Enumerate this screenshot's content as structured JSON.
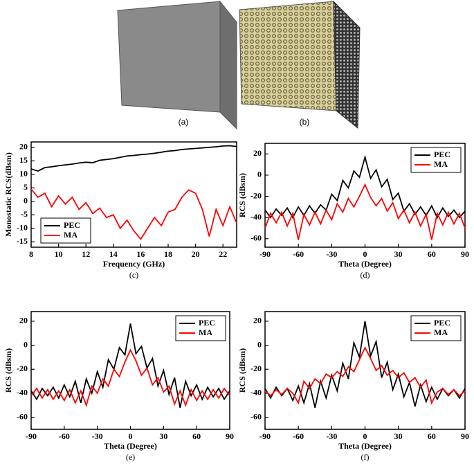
{
  "panels": {
    "a": "(a)",
    "b": "(b)"
  },
  "chart_data": [
    {
      "type": "line",
      "caption": "(c)",
      "xlabel": "Frequency (GHz)",
      "ylabel": "Monostatic RCS(dBsm)",
      "x": [
        8,
        8.5,
        9,
        9.5,
        10,
        10.5,
        11,
        11.5,
        12,
        12.5,
        13,
        13.5,
        14,
        14.5,
        15,
        15.5,
        16,
        16.5,
        17,
        17.5,
        18,
        18.5,
        19,
        19.5,
        20,
        20.5,
        21,
        21.5,
        22,
        22.5,
        23
      ],
      "series": [
        {
          "name": "PEC",
          "color": "#000000",
          "values": [
            12,
            11.2,
            12.5,
            12.8,
            13.2,
            13.5,
            13.8,
            14.2,
            14.5,
            14.3,
            15.2,
            15.5,
            15.8,
            16.3,
            16.8,
            17,
            17.3,
            17.5,
            17.8,
            18.2,
            18.6,
            18.8,
            19.2,
            19.4,
            19.6,
            19.8,
            20,
            20.2,
            20.5,
            20.6,
            20.3
          ]
        },
        {
          "name": "MA",
          "color": "#ff0000",
          "values": [
            4.5,
            1.5,
            3,
            -2,
            2,
            -1,
            1.5,
            -3,
            -0.5,
            -4.5,
            -2.5,
            -6,
            -5,
            -10,
            -7,
            -11,
            -14,
            -10,
            -6,
            -9,
            -4,
            -3,
            1.5,
            4.2,
            3,
            -3,
            -13,
            -3,
            -9,
            -2,
            -8
          ]
        }
      ],
      "xlim": [
        8,
        23
      ],
      "ylim": [
        -17,
        22
      ],
      "xticks": [
        8,
        10,
        12,
        14,
        16,
        18,
        20,
        22
      ],
      "yticks": [
        -15,
        -10,
        -5,
        0,
        5,
        10,
        15,
        20
      ],
      "legend": "lower-left"
    },
    {
      "type": "line",
      "caption": "(d)",
      "xlabel": "Theta (Degree)",
      "ylabel": "RCS (dBsm)",
      "x": [
        -90,
        -85,
        -80,
        -75,
        -70,
        -65,
        -60,
        -55,
        -50,
        -45,
        -40,
        -35,
        -30,
        -25,
        -20,
        -15,
        -10,
        -5,
        0,
        5,
        10,
        15,
        20,
        25,
        30,
        35,
        40,
        45,
        50,
        55,
        60,
        65,
        70,
        75,
        80,
        85,
        90
      ],
      "series": [
        {
          "name": "PEC",
          "color": "#000000",
          "values": [
            -33,
            -40,
            -32,
            -38,
            -31,
            -40,
            -30,
            -38,
            -29,
            -36,
            -28,
            -33,
            -18,
            -24,
            -5,
            -12,
            4,
            -2,
            17,
            -3,
            5,
            -11,
            -4,
            -23,
            -17,
            -34,
            -27,
            -37,
            -30,
            -38,
            -29,
            -40,
            -31,
            -39,
            -33,
            -40,
            -34
          ]
        },
        {
          "name": "MA",
          "color": "#ff0000",
          "values": [
            -50,
            -36,
            -45,
            -35,
            -48,
            -36,
            -61,
            -37,
            -47,
            -35,
            -46,
            -33,
            -42,
            -27,
            -35,
            -22,
            -30,
            -20,
            -9,
            -21,
            -29,
            -22,
            -34,
            -26,
            -41,
            -33,
            -45,
            -35,
            -48,
            -37,
            -61,
            -36,
            -47,
            -35,
            -46,
            -36,
            -50
          ]
        }
      ],
      "xlim": [
        -90,
        90
      ],
      "ylim": [
        -68,
        30
      ],
      "xticks": [
        -90,
        -60,
        -30,
        0,
        30,
        60,
        90
      ],
      "yticks": [
        -60,
        -40,
        -20,
        0,
        20
      ],
      "legend": "upper-right"
    },
    {
      "type": "line",
      "caption": "(e)",
      "xlabel": "Theta (Degree)",
      "ylabel": "RCS (dBsm)",
      "x": [
        -90,
        -85,
        -80,
        -75,
        -70,
        -65,
        -60,
        -55,
        -50,
        -45,
        -40,
        -35,
        -30,
        -25,
        -20,
        -15,
        -10,
        -5,
        0,
        5,
        10,
        15,
        20,
        25,
        30,
        35,
        40,
        45,
        50,
        55,
        60,
        65,
        70,
        75,
        80,
        85,
        90
      ],
      "series": [
        {
          "name": "PEC",
          "color": "#000000",
          "values": [
            -38,
            -45,
            -36,
            -42,
            -35,
            -44,
            -33,
            -43,
            -30,
            -48,
            -28,
            -40,
            -22,
            -35,
            -12,
            -20,
            -2,
            -8,
            18,
            -7,
            -1,
            -19,
            -11,
            -34,
            -21,
            -41,
            -27,
            -52,
            -30,
            -42,
            -33,
            -45,
            -35,
            -43,
            -36,
            -45,
            -38
          ]
        },
        {
          "name": "MA",
          "color": "#ff0000",
          "values": [
            -42,
            -36,
            -44,
            -37,
            -45,
            -38,
            -46,
            -37,
            -48,
            -38,
            -50,
            -34,
            -40,
            -28,
            -34,
            -20,
            -26,
            -14,
            -4,
            -13,
            -25,
            -19,
            -33,
            -27,
            -39,
            -34,
            -49,
            -38,
            -50,
            -37,
            -46,
            -38,
            -45,
            -37,
            -44,
            -36,
            -42
          ]
        }
      ],
      "xlim": [
        -90,
        90
      ],
      "ylim": [
        -70,
        28
      ],
      "xticks": [
        -90,
        -60,
        -30,
        0,
        30,
        60,
        90
      ],
      "yticks": [
        -60,
        -40,
        -20,
        0,
        20
      ],
      "legend": "upper-right"
    },
    {
      "type": "line",
      "caption": "(f)",
      "xlabel": "Theta (Degree)",
      "ylabel": "RCS (dBsm)",
      "x": [
        -90,
        -85,
        -80,
        -75,
        -70,
        -65,
        -60,
        -55,
        -50,
        -45,
        -40,
        -35,
        -30,
        -25,
        -20,
        -15,
        -10,
        -5,
        0,
        5,
        10,
        15,
        20,
        25,
        30,
        35,
        40,
        45,
        50,
        55,
        60,
        65,
        70,
        75,
        80,
        85,
        90
      ],
      "series": [
        {
          "name": "PEC",
          "color": "#000000",
          "values": [
            -36,
            -44,
            -35,
            -42,
            -36,
            -46,
            -34,
            -48,
            -32,
            -52,
            -30,
            -44,
            -25,
            -38,
            -15,
            -28,
            2,
            -10,
            20,
            -9,
            3,
            -27,
            -14,
            -37,
            -24,
            -43,
            -31,
            -51,
            -33,
            -47,
            -35,
            -45,
            -36,
            -42,
            -37,
            -44,
            -36
          ]
        },
        {
          "name": "MA",
          "color": "#ff0000",
          "values": [
            -38,
            -42,
            -37,
            -41,
            -36,
            -40,
            -48,
            -30,
            -36,
            -28,
            -32,
            -24,
            -27,
            -22,
            -26,
            -18,
            -22,
            -12,
            -2,
            -11,
            -21,
            -17,
            -25,
            -21,
            -27,
            -23,
            -31,
            -27,
            -35,
            -29,
            -48,
            -39,
            -36,
            -41,
            -37,
            -42,
            -38
          ]
        }
      ],
      "xlim": [
        -90,
        90
      ],
      "ylim": [
        -70,
        28
      ],
      "xticks": [
        -90,
        -60,
        -30,
        0,
        30,
        60,
        90
      ],
      "yticks": [
        -60,
        -40,
        -20,
        0,
        20
      ],
      "legend": "upper-right"
    }
  ]
}
